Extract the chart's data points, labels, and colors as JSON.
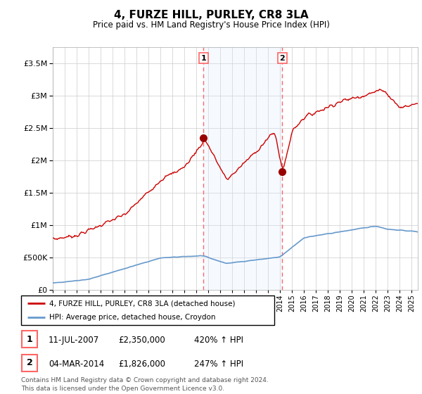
{
  "title": "4, FURZE HILL, PURLEY, CR8 3LA",
  "subtitle": "Price paid vs. HM Land Registry's House Price Index (HPI)",
  "legend_line1": "4, FURZE HILL, PURLEY, CR8 3LA (detached house)",
  "legend_line2": "HPI: Average price, detached house, Croydon",
  "sale1_label": "1",
  "sale1_date": "11-JUL-2007",
  "sale1_price": "£2,350,000",
  "sale1_hpi": "420% ↑ HPI",
  "sale1_year": 2007.6,
  "sale1_value": 2350000,
  "sale2_label": "2",
  "sale2_date": "04-MAR-2014",
  "sale2_price": "£1,826,000",
  "sale2_hpi": "247% ↑ HPI",
  "sale2_year": 2014.17,
  "sale2_value": 1826000,
  "hpi_color": "#6699cc",
  "price_color": "#cc0000",
  "marker_color": "#990000",
  "sale_line_color": "#ff6666",
  "shade_color": "#ddeeff",
  "background_color": "#ffffff",
  "grid_color": "#cccccc",
  "footer": "Contains HM Land Registry data © Crown copyright and database right 2024.\nThis data is licensed under the Open Government Licence v3.0.",
  "ylim_min": 0,
  "ylim_max": 3750000,
  "xmin": 1995,
  "xmax": 2025.5
}
